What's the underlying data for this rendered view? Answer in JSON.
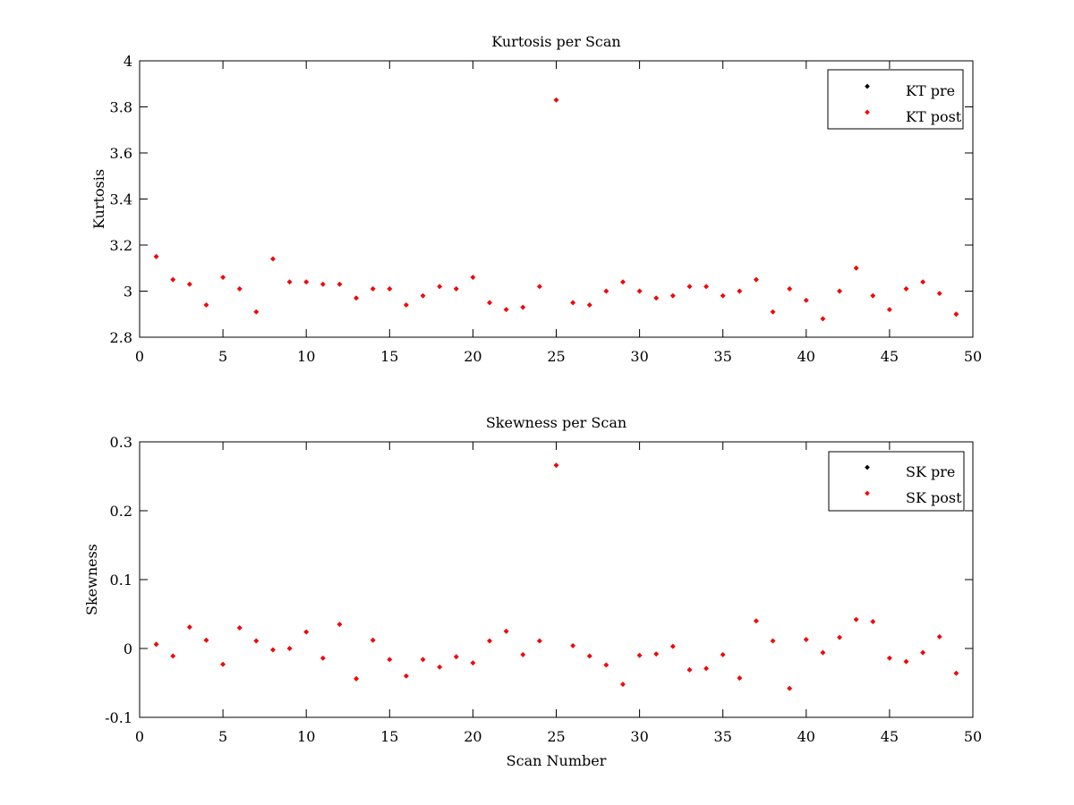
{
  "chart_data": [
    {
      "type": "scatter",
      "title": "Kurtosis per Scan",
      "xlabel": "",
      "ylabel": "Kurtosis",
      "xlim": [
        0,
        50
      ],
      "ylim": [
        2.8,
        4
      ],
      "x_ticks": [
        0,
        5,
        10,
        15,
        20,
        25,
        30,
        35,
        40,
        45,
        50
      ],
      "y_ticks": [
        2.8,
        3,
        3.2,
        3.4,
        3.6,
        3.8,
        4
      ],
      "x_tick_labels": [
        "0",
        "5",
        "10",
        "15",
        "20",
        "25",
        "30",
        "35",
        "40",
        "45",
        "50"
      ],
      "y_tick_labels": [
        "2.8",
        "3",
        "3.2",
        "3.4",
        "3.6",
        "3.8",
        "4"
      ],
      "grid": false,
      "legend_position": "top-right",
      "series": [
        {
          "name": "KT pre",
          "color": "#000000",
          "x": [
            1,
            2,
            3,
            4,
            5,
            6,
            7,
            8,
            9,
            10,
            11,
            12,
            13,
            14,
            15,
            16,
            17,
            18,
            19,
            20,
            21,
            22,
            23,
            24,
            25,
            26,
            27,
            28,
            29,
            30,
            31,
            32,
            33,
            34,
            35,
            36,
            37,
            38,
            39,
            40,
            41,
            42,
            43,
            44,
            45,
            46,
            47,
            48,
            49
          ],
          "y": [
            3.15,
            3.05,
            3.03,
            2.94,
            3.06,
            3.01,
            2.91,
            3.14,
            3.04,
            3.04,
            3.03,
            3.03,
            2.97,
            3.01,
            3.01,
            2.94,
            2.98,
            3.02,
            3.01,
            3.06,
            2.95,
            2.92,
            2.93,
            3.02,
            3.83,
            2.95,
            2.94,
            3.0,
            3.04,
            3.0,
            2.97,
            2.98,
            3.02,
            3.02,
            2.98,
            3.0,
            3.05,
            2.91,
            3.01,
            2.96,
            2.88,
            3.0,
            3.1,
            2.98,
            2.92,
            3.01,
            3.04,
            2.99,
            2.9
          ]
        },
        {
          "name": "KT post",
          "color": "#ff0000",
          "x": [
            1,
            2,
            3,
            4,
            5,
            6,
            7,
            8,
            9,
            10,
            11,
            12,
            13,
            14,
            15,
            16,
            17,
            18,
            19,
            20,
            21,
            22,
            23,
            24,
            25,
            26,
            27,
            28,
            29,
            30,
            31,
            32,
            33,
            34,
            35,
            36,
            37,
            38,
            39,
            40,
            41,
            42,
            43,
            44,
            45,
            46,
            47,
            48,
            49
          ],
          "y": [
            3.15,
            3.05,
            3.03,
            2.94,
            3.06,
            3.01,
            2.91,
            3.14,
            3.04,
            3.04,
            3.03,
            3.03,
            2.97,
            3.01,
            3.01,
            2.94,
            2.98,
            3.02,
            3.01,
            3.06,
            2.95,
            2.92,
            2.93,
            3.02,
            3.83,
            2.95,
            2.94,
            3.0,
            3.04,
            3.0,
            2.97,
            2.98,
            3.02,
            3.02,
            2.98,
            3.0,
            3.05,
            2.91,
            3.01,
            2.96,
            2.88,
            3.0,
            3.1,
            2.98,
            2.92,
            3.01,
            3.04,
            2.99,
            2.9
          ]
        }
      ]
    },
    {
      "type": "scatter",
      "title": "Skewness per Scan",
      "xlabel": "Scan Number",
      "ylabel": "Skewness",
      "xlim": [
        0,
        50
      ],
      "ylim": [
        -0.1,
        0.3
      ],
      "x_ticks": [
        0,
        5,
        10,
        15,
        20,
        25,
        30,
        35,
        40,
        45,
        50
      ],
      "y_ticks": [
        -0.1,
        0,
        0.1,
        0.2,
        0.3
      ],
      "x_tick_labels": [
        "0",
        "5",
        "10",
        "15",
        "20",
        "25",
        "30",
        "35",
        "40",
        "45",
        "50"
      ],
      "y_tick_labels": [
        "-0.1",
        "0",
        "0.1",
        "0.2",
        "0.3"
      ],
      "grid": false,
      "legend_position": "top-right",
      "series": [
        {
          "name": "SK pre",
          "color": "#000000",
          "x": [
            1,
            2,
            3,
            4,
            5,
            6,
            7,
            8,
            9,
            10,
            11,
            12,
            13,
            14,
            15,
            16,
            17,
            18,
            19,
            20,
            21,
            22,
            23,
            24,
            25,
            26,
            27,
            28,
            29,
            30,
            31,
            32,
            33,
            34,
            35,
            36,
            37,
            38,
            39,
            40,
            41,
            42,
            43,
            44,
            45,
            46,
            47,
            48,
            49
          ],
          "y": [
            0.006,
            -0.011,
            0.031,
            0.012,
            -0.023,
            0.03,
            0.011,
            -0.002,
            0.0,
            0.024,
            -0.014,
            0.035,
            -0.044,
            0.012,
            -0.016,
            -0.04,
            -0.016,
            -0.027,
            -0.012,
            -0.021,
            0.011,
            0.025,
            -0.009,
            0.011,
            0.266,
            0.004,
            -0.011,
            -0.024,
            -0.052,
            -0.01,
            -0.008,
            0.003,
            -0.031,
            -0.029,
            -0.009,
            -0.043,
            0.04,
            0.011,
            -0.058,
            0.013,
            -0.006,
            0.016,
            0.042,
            0.039,
            -0.014,
            -0.019,
            -0.006,
            0.017,
            -0.036
          ]
        },
        {
          "name": "SK post",
          "color": "#ff0000",
          "x": [
            1,
            2,
            3,
            4,
            5,
            6,
            7,
            8,
            9,
            10,
            11,
            12,
            13,
            14,
            15,
            16,
            17,
            18,
            19,
            20,
            21,
            22,
            23,
            24,
            25,
            26,
            27,
            28,
            29,
            30,
            31,
            32,
            33,
            34,
            35,
            36,
            37,
            38,
            39,
            40,
            41,
            42,
            43,
            44,
            45,
            46,
            47,
            48,
            49
          ],
          "y": [
            0.006,
            -0.011,
            0.031,
            0.012,
            -0.023,
            0.03,
            0.011,
            -0.002,
            0.0,
            0.024,
            -0.014,
            0.035,
            -0.044,
            0.012,
            -0.016,
            -0.04,
            -0.016,
            -0.027,
            -0.012,
            -0.021,
            0.011,
            0.025,
            -0.009,
            0.011,
            0.266,
            0.004,
            -0.011,
            -0.024,
            -0.052,
            -0.01,
            -0.008,
            0.003,
            -0.031,
            -0.029,
            -0.009,
            -0.043,
            0.04,
            0.011,
            -0.058,
            0.013,
            -0.006,
            0.016,
            0.042,
            0.039,
            -0.014,
            -0.019,
            -0.006,
            0.017,
            -0.036
          ]
        }
      ]
    }
  ]
}
